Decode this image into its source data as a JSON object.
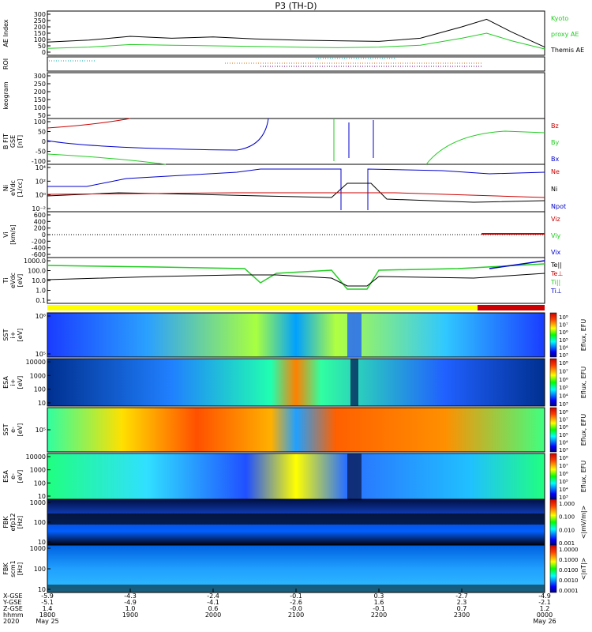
{
  "title": "P3 (TH-D)",
  "panels": [
    {
      "id": "ae",
      "ylabel": [
        "AE Index"
      ],
      "ticks": [
        "300",
        "250",
        "200",
        "150",
        "100",
        "50",
        "0"
      ],
      "legend": [
        {
          "text": "Kyoto",
          "color": "#22cc22"
        },
        {
          "text": "proxy AE",
          "color": "#22cc22"
        },
        {
          "text": "Themis AE",
          "color": "#000000"
        }
      ]
    },
    {
      "id": "roi",
      "ylabel": [
        "ROI"
      ],
      "ticks": [],
      "legend": []
    },
    {
      "id": "keogram",
      "ylabel": [
        "keogram"
      ],
      "ticks": [
        "300",
        "250",
        "200",
        "150",
        "100",
        "50"
      ],
      "legend": []
    },
    {
      "id": "bfit",
      "ylabel": [
        "B FIT",
        "GSE",
        "[nT]"
      ],
      "ticks": [
        "100",
        "50",
        "0",
        "-50",
        "-100"
      ],
      "legend": [
        {
          "text": "Bz",
          "color": "#cc0000"
        },
        {
          "text": "By",
          "color": "#22cc22"
        },
        {
          "text": "Bx",
          "color": "#0000cc"
        }
      ]
    },
    {
      "id": "ni",
      "ylabel": [
        "Ni",
        "eVdc",
        "[1/cc]"
      ],
      "ticks": [
        "10⁴",
        "10²",
        "10⁰",
        "10⁻²"
      ],
      "legend": [
        {
          "text": "Ne",
          "color": "#cc0000"
        },
        {
          "text": "Ni",
          "color": "#000000"
        },
        {
          "text": "Npot",
          "color": "#0000cc"
        }
      ]
    },
    {
      "id": "vi",
      "ylabel": [
        "Vi",
        "[km/s]"
      ],
      "ticks": [
        "600",
        "400",
        "200",
        "0",
        "-200",
        "-400",
        "-600"
      ],
      "legend": [
        {
          "text": "Viz",
          "color": "#cc0000"
        },
        {
          "text": "Viy",
          "color": "#22cc22"
        },
        {
          "text": "Vix",
          "color": "#0000cc"
        }
      ]
    },
    {
      "id": "ti",
      "ylabel": [
        "Ti",
        "eVdc",
        "[eV]"
      ],
      "ticks": [
        "1000.0",
        "100.0",
        "10.0",
        "1.0",
        "0.1"
      ],
      "legend": [
        {
          "text": "Te||",
          "color": "#000000"
        },
        {
          "text": "Te⊥",
          "color": "#cc0000"
        },
        {
          "text": "Ti||",
          "color": "#22cc22"
        },
        {
          "text": "Ti⊥",
          "color": "#0000cc"
        }
      ]
    },
    {
      "id": "sst_i",
      "ylabel": [
        "SST",
        "i+",
        "[eV]"
      ],
      "ticks": [
        "10⁶",
        "10⁵"
      ],
      "legend": []
    },
    {
      "id": "esa_i",
      "ylabel": [
        "ESA",
        "i+",
        "[eV]"
      ],
      "ticks": [
        "10000",
        "1000",
        "100",
        "10"
      ],
      "legend": []
    },
    {
      "id": "sst_e",
      "ylabel": [
        "SST",
        "e-",
        "[eV]"
      ],
      "ticks": [
        "10⁵"
      ],
      "legend": []
    },
    {
      "id": "esa_e",
      "ylabel": [
        "ESA",
        "e-",
        "[eV]"
      ],
      "ticks": [
        "10000",
        "1000",
        "100",
        "10"
      ],
      "legend": []
    },
    {
      "id": "fbk_e",
      "ylabel": [
        "FBK",
        "efp12",
        "[Hz]"
      ],
      "ticks": [
        "1000",
        "100",
        "10"
      ],
      "legend": []
    },
    {
      "id": "fbk_b",
      "ylabel": [
        "FBK",
        "scm1",
        "[Hz]"
      ],
      "ticks": [
        "1000",
        "100",
        "10"
      ],
      "legend": []
    }
  ],
  "colorbars": [
    {
      "panel": "sst_i",
      "label": "Eflux, EFU",
      "ticks": [
        "10⁸",
        "10⁷",
        "10⁶",
        "10⁵",
        "10⁴",
        "10³"
      ]
    },
    {
      "panel": "esa_i",
      "label": "Eflux, EFU",
      "ticks": [
        "10⁸",
        "10⁷",
        "10⁶",
        "10⁵",
        "10⁴",
        "10³"
      ]
    },
    {
      "panel": "sst_e",
      "label": "Eflux, EFU",
      "ticks": [
        "10⁸",
        "10⁷",
        "10⁶",
        "10⁵",
        "10⁴",
        "10³"
      ]
    },
    {
      "panel": "esa_e",
      "label": "Eflux, EFU",
      "ticks": [
        "10⁸",
        "10⁷",
        "10⁶",
        "10⁵",
        "10⁴",
        "10³"
      ]
    },
    {
      "panel": "fbk_e",
      "label": "<|mV/m|>",
      "ticks": [
        "1.000",
        "0.100",
        "0.010",
        "0.001"
      ]
    },
    {
      "panel": "fbk_b",
      "label": "<|nT|>",
      "ticks": [
        "1.0000",
        "0.1000",
        "0.0100",
        "0.0010",
        "0.0001"
      ]
    }
  ],
  "xaxis": {
    "row_labels": [
      "X-GSE",
      "Y-GSE",
      "Z-GSE",
      "hhmm",
      "2020"
    ],
    "columns": [
      {
        "v": [
          "-5.9",
          "-5.1",
          "1.4",
          "1800",
          "May 25"
        ]
      },
      {
        "v": [
          "-4.3",
          "-4.9",
          "1.0",
          "1900",
          ""
        ]
      },
      {
        "v": [
          "-2.4",
          "-4.1",
          "0.6",
          "2000",
          ""
        ]
      },
      {
        "v": [
          "-0.1",
          "-2.6",
          "-0.0",
          "2100",
          ""
        ]
      },
      {
        "v": [
          "0.3",
          "1.6",
          "-0.1",
          "2200",
          ""
        ]
      },
      {
        "v": [
          "-2.7",
          "2.3",
          "0.7",
          "2300",
          ""
        ]
      },
      {
        "v": [
          "-4.9",
          "-2.1",
          "1.2",
          "0000",
          "May 26"
        ]
      }
    ]
  },
  "chart_data": {
    "type": "line",
    "x_hours": [
      18,
      18.5,
      19,
      19.5,
      20,
      20.5,
      21,
      21.5,
      22,
      22.5,
      23,
      23.3,
      23.6,
      24
    ],
    "themis_ae": [
      80,
      95,
      125,
      110,
      120,
      105,
      95,
      90,
      85,
      110,
      200,
      260,
      160,
      40
    ],
    "kyoto_ae": [
      30,
      40,
      60,
      55,
      50,
      45,
      40,
      35,
      40,
      55,
      110,
      150,
      90,
      25
    ],
    "x_ticks": [
      "1800",
      "1900",
      "2000",
      "2100",
      "2200",
      "2300",
      "0000"
    ]
  }
}
